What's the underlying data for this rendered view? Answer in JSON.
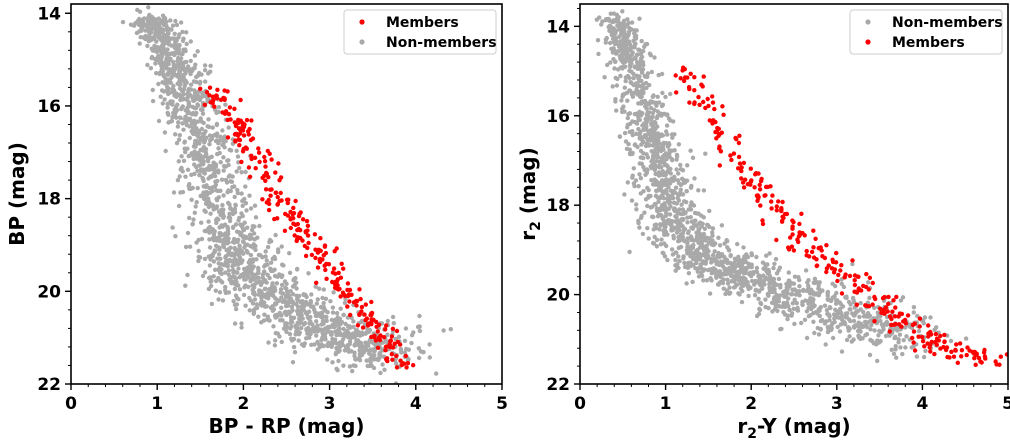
{
  "chart_data": [
    {
      "type": "scatter",
      "xlabel": "BP - RP (mag)",
      "ylabel": "BP (mag)",
      "xlim": [
        0,
        5
      ],
      "ylim": [
        22,
        13.8
      ],
      "y_inverted": true,
      "xticks": [
        "0",
        "1",
        "2",
        "3",
        "4",
        "5"
      ],
      "yticks": [
        "14",
        "16",
        "18",
        "20",
        "22"
      ],
      "legend_position": "top-right",
      "legend": [
        "Members",
        "Non-members"
      ],
      "series": [
        {
          "name": "Members",
          "color": "#ff0000",
          "trend": [
            [
              1.6,
              15.6
            ],
            [
              1.95,
              16.4
            ],
            [
              2.25,
              17.5
            ],
            [
              2.55,
              18.4
            ],
            [
              2.85,
              19.1
            ],
            [
              3.1,
              19.8
            ],
            [
              3.35,
              20.4
            ],
            [
              3.6,
              21.0
            ],
            [
              3.85,
              21.6
            ]
          ],
          "spread": 0.09,
          "count": 280,
          "seed": 11
        },
        {
          "name": "Non-members",
          "color": "#a9a9a9",
          "trend": [
            [
              0.9,
              14.1
            ],
            [
              1.15,
              14.8
            ],
            [
              1.35,
              15.8
            ],
            [
              1.55,
              17.0
            ],
            [
              1.75,
              18.3
            ],
            [
              1.95,
              19.3
            ],
            [
              2.2,
              20.0
            ],
            [
              2.7,
              20.6
            ],
            [
              3.2,
              21.0
            ],
            [
              3.8,
              21.3
            ]
          ],
          "spread": 0.16,
          "count": 1800,
          "seed": 23
        }
      ]
    },
    {
      "type": "scatter",
      "xlabel": "r2-Y (mag)",
      "xlabel_main": "r",
      "xlabel_sub": "2",
      "xlabel_rest": "-Y (mag)",
      "ylabel": "r2 (mag)",
      "ylabel_main": "r",
      "ylabel_sub": "2",
      "ylabel_rest": " (mag)",
      "xlim": [
        0,
        5
      ],
      "ylim": [
        22,
        13.5
      ],
      "y_inverted": true,
      "xticks": [
        "0",
        "1",
        "2",
        "3",
        "4",
        "5"
      ],
      "yticks": [
        "14",
        "16",
        "18",
        "20",
        "22"
      ],
      "legend_position": "top-right",
      "legend": [
        "Non-members",
        "Members"
      ],
      "series": [
        {
          "name": "Members",
          "color": "#ff0000",
          "trend": [
            [
              1.2,
              15.0
            ],
            [
              1.5,
              15.9
            ],
            [
              1.8,
              16.9
            ],
            [
              2.1,
              17.7
            ],
            [
              2.5,
              18.6
            ],
            [
              3.0,
              19.4
            ],
            [
              3.5,
              20.2
            ],
            [
              4.0,
              20.9
            ],
            [
              4.3,
              21.2
            ],
            [
              4.95,
              21.5
            ]
          ],
          "spread": 0.11,
          "count": 290,
          "seed": 37
        },
        {
          "name": "Non-members",
          "color": "#a9a9a9",
          "trend": [
            [
              0.4,
              13.8
            ],
            [
              0.6,
              14.8
            ],
            [
              0.8,
              16.2
            ],
            [
              0.95,
              17.4
            ],
            [
              1.1,
              18.4
            ],
            [
              1.4,
              19.1
            ],
            [
              1.9,
              19.6
            ],
            [
              2.5,
              20.0
            ],
            [
              3.2,
              20.5
            ],
            [
              3.9,
              21.0
            ]
          ],
          "spread": 0.15,
          "count": 1700,
          "seed": 53
        }
      ]
    }
  ]
}
